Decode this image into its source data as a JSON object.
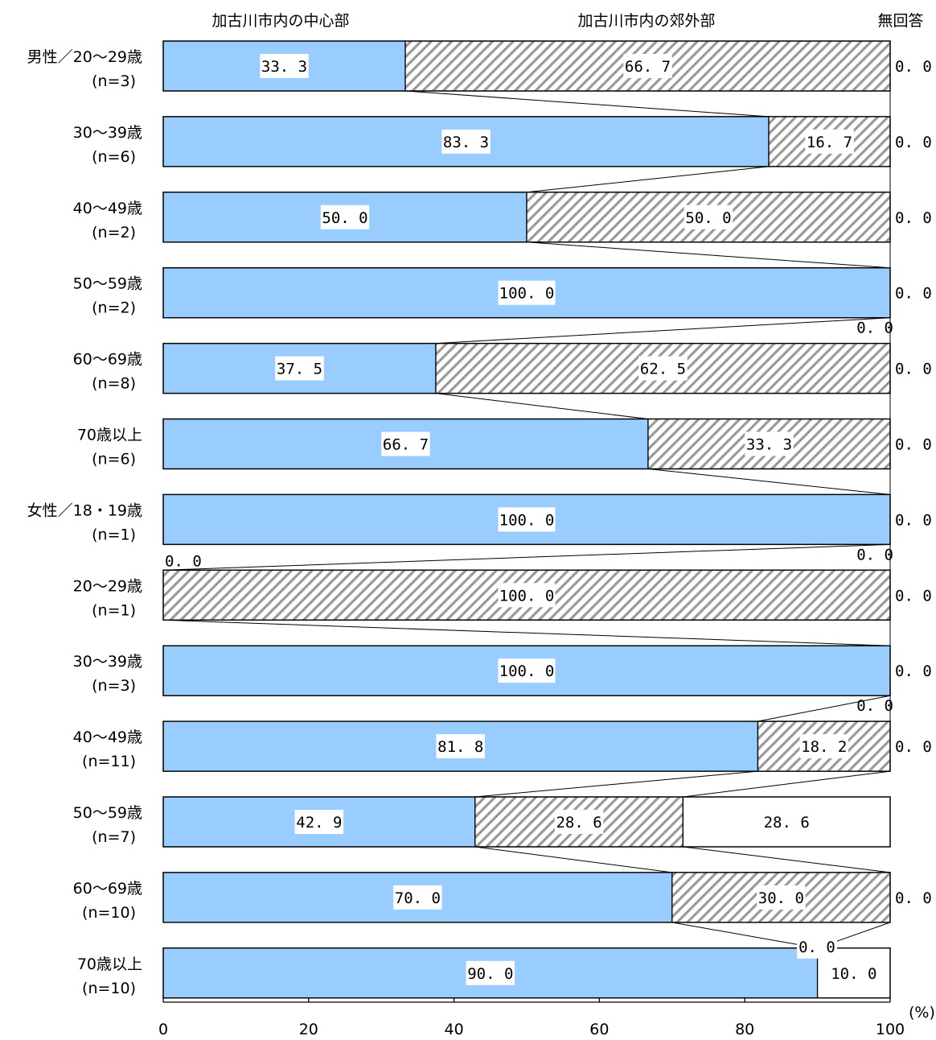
{
  "chart_data": {
    "type": "bar",
    "orientation": "horizontal",
    "stacked": true,
    "percent_stacked": true,
    "series": [
      {
        "name": "加古川市内の中心部",
        "color": "#99ccff",
        "pattern": "solid",
        "values": [
          33.3,
          83.3,
          50.0,
          100.0,
          37.5,
          66.7,
          100.0,
          0.0,
          100.0,
          81.8,
          42.9,
          70.0,
          90.0
        ]
      },
      {
        "name": "加古川市内の郊外部",
        "color": "#ffffff",
        "pattern": "diagonal-hatch",
        "values": [
          66.7,
          16.7,
          50.0,
          0.0,
          62.5,
          33.3,
          0.0,
          100.0,
          0.0,
          18.2,
          28.6,
          30.0,
          0.0
        ]
      },
      {
        "name": "無回答",
        "color": "#ffffff",
        "pattern": "solid",
        "values": [
          0.0,
          0.0,
          0.0,
          0.0,
          0.0,
          0.0,
          0.0,
          0.0,
          0.0,
          0.0,
          28.6,
          0.0,
          10.0
        ]
      }
    ],
    "categories": [
      {
        "label": "男性／20～29歳",
        "n": "(n=3)"
      },
      {
        "label": "30～39歳",
        "n": "(n=6)"
      },
      {
        "label": "40～49歳",
        "n": "(n=2)"
      },
      {
        "label": "50～59歳",
        "n": "(n=2)"
      },
      {
        "label": "60～69歳",
        "n": "(n=8)"
      },
      {
        "label": "70歳以上",
        "n": "(n=6)"
      },
      {
        "label": "女性／18・19歳",
        "n": "(n=1)"
      },
      {
        "label": "20～29歳",
        "n": "(n=1)"
      },
      {
        "label": "30～39歳",
        "n": "(n=3)"
      },
      {
        "label": "40～49歳",
        "n": "(n=11)"
      },
      {
        "label": "50～59歳",
        "n": "(n=7)"
      },
      {
        "label": "60～69歳",
        "n": "(n=10)"
      },
      {
        "label": "70歳以上",
        "n": "(n=10)"
      }
    ],
    "labels": [
      [
        "33. 3",
        "66. 7",
        "0. 0"
      ],
      [
        "83. 3",
        "16. 7",
        "0. 0"
      ],
      [
        "50. 0",
        "50. 0",
        "0. 0"
      ],
      [
        "100. 0",
        "0. 0",
        "0. 0"
      ],
      [
        "37. 5",
        "62. 5",
        "0. 0"
      ],
      [
        "66. 7",
        "33. 3",
        "0. 0"
      ],
      [
        "100. 0",
        "0. 0",
        "0. 0"
      ],
      [
        "0. 0",
        "100. 0",
        "0. 0"
      ],
      [
        "100. 0",
        "0. 0",
        "0. 0"
      ],
      [
        "81. 8",
        "18. 2",
        "0. 0"
      ],
      [
        "42. 9",
        "28. 6",
        "28. 6"
      ],
      [
        "70. 0",
        "30. 0",
        "0. 0"
      ],
      [
        "90. 0",
        "0. 0",
        "10. 0"
      ]
    ],
    "series_labels": [
      "加古川市内の中心部",
      "加古川市内の郊外部",
      "無回答"
    ],
    "xlim": [
      0,
      100
    ],
    "xticks": [
      "0",
      "20",
      "40",
      "60",
      "80",
      "100"
    ],
    "xunit": "(%)",
    "connector_lines": true
  }
}
